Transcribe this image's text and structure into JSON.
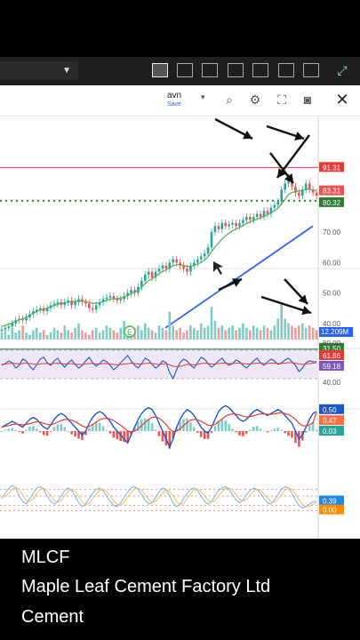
{
  "toolbar": {
    "layout_icons": [
      "single-layout-icon",
      "two-column-layout-icon",
      "two-row-layout-icon",
      "three-row-layout-icon",
      "three-column-layout-icon",
      "four-grid-layout-icon",
      "six-grid-layout-icon"
    ],
    "expand_icon": "expand-icon"
  },
  "layout_pill": {
    "name": "avn",
    "save": "Save"
  },
  "chart_toolbar": {
    "icons": [
      "zoom-icon",
      "gear-icon",
      "fullscreen-icon",
      "camera-icon",
      "close-icon"
    ]
  },
  "price_labels": {
    "p1": "91.31",
    "p2": "83.31",
    "p3": "80.32",
    "p4": "70.00",
    "p5": "60.00",
    "p6": "50.00",
    "p7": "40.00",
    "p8": "31.50",
    "p9": "12.209M"
  },
  "rsi_labels": {
    "r1": "80.00",
    "r2": "61.86",
    "r3": "59.18",
    "r4": "40.00"
  },
  "macd_labels": {
    "m1": "0.50",
    "m2": "0.47",
    "m3": "0.03"
  },
  "stoch_labels": {
    "s1": "0.39",
    "s2": "0.00"
  },
  "earnings_marker": "E",
  "colors": {
    "up": "#26a69a",
    "down": "#ef5350",
    "ma": "#4caf50",
    "trend": "#2962ff",
    "resistance": "#e53935"
  },
  "chart_data": {
    "type": "line",
    "price_axis_ticks": [
      91.31,
      83.31,
      80.32,
      70.0,
      60.0,
      50.0,
      40.0,
      31.5
    ],
    "close": [
      38,
      38.5,
      39,
      40,
      41,
      41.5,
      41,
      42,
      43,
      44,
      44.5,
      45,
      44,
      45,
      46,
      46.5,
      47,
      46,
      47,
      47.5,
      46,
      47,
      48,
      47,
      46.5,
      45,
      44.5,
      46,
      47,
      48,
      48.5,
      49,
      48,
      47.5,
      48,
      49,
      50,
      51,
      50,
      52,
      54,
      56,
      57,
      55,
      57,
      58,
      59,
      58,
      60,
      61,
      60,
      59,
      58,
      57,
      59,
      60,
      61,
      62,
      63,
      65,
      70,
      72,
      71,
      73,
      72,
      72.5,
      73,
      72,
      73,
      74,
      75,
      74,
      75,
      76,
      75,
      77,
      76,
      78,
      79,
      80,
      84,
      86,
      88,
      85,
      83,
      82,
      84,
      86,
      84,
      83,
      82
    ],
    "ma": [
      39,
      39.3,
      39.7,
      40.2,
      40.8,
      41.2,
      41.5,
      42,
      42.7,
      43.3,
      43.9,
      44.4,
      44.6,
      45,
      45.5,
      45.9,
      46.3,
      46.5,
      46.8,
      47,
      47,
      47.2,
      47.4,
      47.4,
      47.2,
      46.9,
      46.6,
      46.6,
      46.8,
      47.2,
      47.6,
      48,
      48.1,
      48.1,
      48.3,
      48.7,
      49.2,
      49.8,
      50.2,
      50.9,
      51.9,
      53,
      54.1,
      54.7,
      55.5,
      56.3,
      57.1,
      57.6,
      58.3,
      59,
      59.3,
      59.3,
      59.1,
      58.7,
      58.8,
      59.1,
      59.5,
      60.1,
      60.8,
      61.9,
      63.6,
      65.2,
      66.4,
      67.8,
      68.8,
      69.7,
      70.5,
      71,
      71.6,
      72.2,
      72.9,
      73.3,
      73.8,
      74.4,
      74.7,
      75.3,
      75.7,
      76.4,
      77.1,
      77.9,
      79.3,
      80.8,
      82.4,
      83.1,
      83.4,
      83.5,
      83.7,
      84.1,
      84.1,
      83.9,
      83.6
    ],
    "volume": [
      3,
      4,
      2,
      5,
      3,
      4,
      6,
      3,
      2,
      4,
      5,
      3,
      4,
      2,
      3,
      5,
      4,
      3,
      6,
      4,
      3,
      5,
      7,
      4,
      3,
      2,
      4,
      5,
      3,
      4,
      6,
      5,
      4,
      3,
      5,
      8,
      4,
      3,
      5,
      6,
      4,
      7,
      5,
      4,
      3,
      6,
      5,
      4,
      12,
      6,
      4,
      5,
      3,
      4,
      6,
      5,
      4,
      7,
      5,
      6,
      14,
      8,
      5,
      6,
      4,
      5,
      6,
      4,
      5,
      7,
      5,
      4,
      6,
      5,
      4,
      6,
      5,
      4,
      6,
      9,
      16,
      9,
      7,
      6,
      5,
      6,
      7,
      5,
      6,
      5,
      4
    ],
    "resistance_level": 91.31,
    "support_level": 31.5,
    "rsi": [
      55,
      57,
      60,
      58,
      52,
      55,
      62,
      60,
      54,
      50,
      56,
      62,
      64,
      58,
      55,
      60,
      63,
      57,
      53,
      58,
      61,
      56,
      52,
      55,
      60,
      64,
      58,
      54,
      57,
      61,
      59,
      55,
      50,
      53,
      58,
      62,
      66,
      60,
      55,
      52,
      57,
      63,
      61,
      56,
      52,
      55,
      60,
      58,
      47,
      40,
      50,
      58,
      62,
      60,
      55,
      52,
      58,
      64,
      62,
      57,
      53,
      56,
      60,
      63,
      58,
      55,
      57,
      61,
      59,
      55,
      52,
      56,
      60,
      63,
      58,
      55,
      59,
      62,
      60,
      56,
      58,
      61,
      63,
      59,
      55,
      48,
      52,
      58,
      60,
      59,
      59
    ],
    "rsi_ma": [
      56,
      56.5,
      57,
      57.5,
      57,
      56.5,
      57,
      57.5,
      57,
      56.5,
      56,
      56.5,
      57,
      57,
      56.5,
      57,
      57.5,
      57,
      56.5,
      56.5,
      57,
      56.5,
      56,
      56,
      56.5,
      57,
      57,
      56.5,
      56.5,
      57,
      57,
      56.5,
      56,
      55.5,
      56,
      56.5,
      57,
      57.5,
      57,
      56.5,
      56.5,
      57,
      57.5,
      57,
      56.5,
      56,
      56.5,
      57,
      55.5,
      54,
      53.5,
      54,
      55,
      56,
      56,
      55.5,
      56,
      57,
      57.5,
      57,
      56.5,
      56.5,
      57,
      57.5,
      57.5,
      57,
      57,
      57.5,
      57.5,
      57,
      56.5,
      56.5,
      57,
      57.5,
      57.5,
      57,
      57,
      57.5,
      57.5,
      57,
      57,
      57.5,
      58,
      58,
      57.5,
      56.5,
      56,
      56.5,
      57,
      57.5,
      58
    ],
    "macd": [
      0.1,
      0.15,
      0.2,
      0.25,
      0.2,
      0.15,
      0.1,
      0.2,
      0.3,
      0.35,
      0.3,
      0.2,
      0.1,
      0.05,
      0.15,
      0.3,
      0.4,
      0.45,
      0.4,
      0.3,
      0.2,
      0.1,
      0.0,
      -0.1,
      0.0,
      0.2,
      0.35,
      0.45,
      0.5,
      0.45,
      0.35,
      0.25,
      0.1,
      0.0,
      -0.1,
      -0.2,
      -0.3,
      -0.1,
      0.1,
      0.3,
      0.45,
      0.55,
      0.6,
      0.55,
      0.4,
      0.2,
      0.0,
      -0.2,
      -0.4,
      -0.2,
      0.1,
      0.3,
      0.45,
      0.55,
      0.5,
      0.4,
      0.25,
      0.1,
      0.0,
      -0.05,
      0.1,
      0.3,
      0.5,
      0.6,
      0.65,
      0.6,
      0.5,
      0.4,
      0.3,
      0.25,
      0.3,
      0.4,
      0.5,
      0.55,
      0.5,
      0.45,
      0.4,
      0.45,
      0.5,
      0.55,
      0.5,
      0.4,
      0.3,
      0.2,
      0.0,
      -0.2,
      -0.1,
      0.1,
      0.3,
      0.45,
      0.5
    ],
    "macd_signal": [
      0.1,
      0.12,
      0.14,
      0.17,
      0.18,
      0.17,
      0.16,
      0.17,
      0.19,
      0.22,
      0.24,
      0.23,
      0.2,
      0.17,
      0.16,
      0.19,
      0.23,
      0.27,
      0.3,
      0.3,
      0.28,
      0.24,
      0.19,
      0.13,
      0.1,
      0.12,
      0.17,
      0.23,
      0.29,
      0.32,
      0.33,
      0.31,
      0.27,
      0.21,
      0.15,
      0.08,
      0.0,
      -0.02,
      0.0,
      0.06,
      0.14,
      0.22,
      0.3,
      0.35,
      0.36,
      0.33,
      0.26,
      0.17,
      0.05,
      -0.01,
      0.0,
      0.06,
      0.14,
      0.22,
      0.28,
      0.3,
      0.29,
      0.25,
      0.2,
      0.15,
      0.14,
      0.17,
      0.24,
      0.31,
      0.38,
      0.42,
      0.44,
      0.43,
      0.41,
      0.38,
      0.36,
      0.37,
      0.39,
      0.42,
      0.44,
      0.44,
      0.43,
      0.43,
      0.44,
      0.46,
      0.47,
      0.45,
      0.42,
      0.37,
      0.3,
      0.2,
      0.14,
      0.13,
      0.16,
      0.22,
      0.47
    ],
    "stoch_k": [
      0.5,
      0.7,
      0.9,
      1.0,
      0.9,
      0.6,
      0.4,
      0.3,
      0.5,
      0.7,
      0.9,
      0.95,
      0.85,
      0.6,
      0.4,
      0.3,
      0.4,
      0.6,
      0.8,
      0.9,
      0.8,
      0.6,
      0.35,
      0.2,
      0.3,
      0.5,
      0.7,
      0.85,
      0.9,
      0.8,
      0.6,
      0.4,
      0.25,
      0.2,
      0.35,
      0.55,
      0.75,
      0.9,
      0.95,
      0.85,
      0.65,
      0.45,
      0.3,
      0.35,
      0.55,
      0.75,
      0.9,
      0.85,
      0.6,
      0.35,
      0.2,
      0.3,
      0.5,
      0.7,
      0.85,
      0.9,
      0.8,
      0.6,
      0.4,
      0.3,
      0.4,
      0.6,
      0.8,
      0.9,
      0.95,
      0.85,
      0.65,
      0.45,
      0.35,
      0.45,
      0.65,
      0.8,
      0.9,
      0.85,
      0.7,
      0.5,
      0.35,
      0.3,
      0.45,
      0.65,
      0.85,
      0.95,
      0.9,
      0.7,
      0.45,
      0.25,
      0.15,
      0.2,
      0.3,
      0.39,
      0.39
    ],
    "stoch_d": [
      0.55,
      0.6,
      0.7,
      0.85,
      0.93,
      0.83,
      0.63,
      0.43,
      0.4,
      0.5,
      0.7,
      0.85,
      0.9,
      0.8,
      0.62,
      0.43,
      0.37,
      0.43,
      0.6,
      0.77,
      0.83,
      0.77,
      0.58,
      0.38,
      0.28,
      0.33,
      0.5,
      0.68,
      0.82,
      0.85,
      0.77,
      0.6,
      0.42,
      0.28,
      0.27,
      0.37,
      0.55,
      0.73,
      0.87,
      0.9,
      0.82,
      0.65,
      0.47,
      0.37,
      0.4,
      0.55,
      0.73,
      0.83,
      0.78,
      0.6,
      0.38,
      0.28,
      0.33,
      0.5,
      0.68,
      0.82,
      0.85,
      0.77,
      0.6,
      0.43,
      0.37,
      0.43,
      0.6,
      0.77,
      0.88,
      0.9,
      0.82,
      0.65,
      0.48,
      0.42,
      0.48,
      0.63,
      0.78,
      0.85,
      0.82,
      0.68,
      0.52,
      0.38,
      0.37,
      0.47,
      0.65,
      0.82,
      0.9,
      0.85,
      0.68,
      0.47,
      0.28,
      0.2,
      0.22,
      0.3,
      0.36
    ]
  },
  "footer": {
    "line1": "MLCF",
    "line2": "Maple Leaf Cement Factory Ltd",
    "line3": "Cement"
  }
}
